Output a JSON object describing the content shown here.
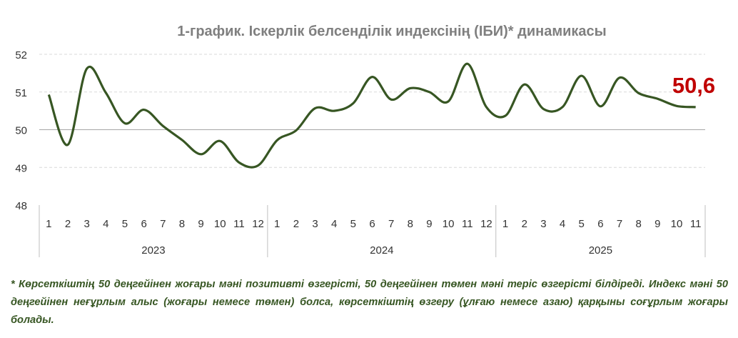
{
  "chart_data": {
    "type": "line",
    "title": "1-график. Іскерлік белсенділік индексінің (ІБИ)* динамикасы",
    "xlabel": "",
    "ylabel": "",
    "ylim": [
      48,
      52
    ],
    "yticks": [
      "48",
      "49",
      "50",
      "51",
      "52"
    ],
    "years": [
      {
        "label": "2023",
        "months": [
          "1",
          "2",
          "3",
          "4",
          "5",
          "6",
          "7",
          "8",
          "9",
          "10",
          "11",
          "12"
        ]
      },
      {
        "label": "2024",
        "months": [
          "1",
          "2",
          "3",
          "4",
          "5",
          "6",
          "7",
          "8",
          "9",
          "10",
          "11",
          "12"
        ]
      },
      {
        "label": "2025",
        "months": [
          "1",
          "2",
          "3",
          "4",
          "5",
          "6",
          "7",
          "8",
          "9",
          "10",
          "11"
        ]
      }
    ],
    "series": [
      {
        "name": "ІБИ",
        "color": "#375623",
        "values": [
          50.93,
          49.6,
          51.62,
          50.98,
          50.17,
          50.53,
          50.1,
          49.73,
          49.35,
          49.7,
          49.13,
          49.05,
          49.72,
          49.98,
          50.57,
          50.5,
          50.7,
          51.4,
          50.8,
          51.1,
          51.0,
          50.75,
          51.75,
          50.6,
          50.37,
          51.2,
          50.55,
          50.6,
          51.43,
          50.62,
          51.38,
          50.97,
          50.82,
          50.63,
          50.6
        ]
      }
    ],
    "annotation": {
      "text": "50,6",
      "color": "#C00000"
    },
    "grid": true
  },
  "footnote": "* Көрсеткіштің 50 деңгейінен жоғары мәні позитивті өзгерісті, 50 деңгейінен төмен мәні теріс өзгерісті білдіреді. Индекс мәні 50 деңгейінен неғұрлым алыс (жоғары немесе төмен) болса, көрсеткіштің өзгеру (ұлғаю немесе азаю) қарқыны соғұрлым жоғары болады."
}
